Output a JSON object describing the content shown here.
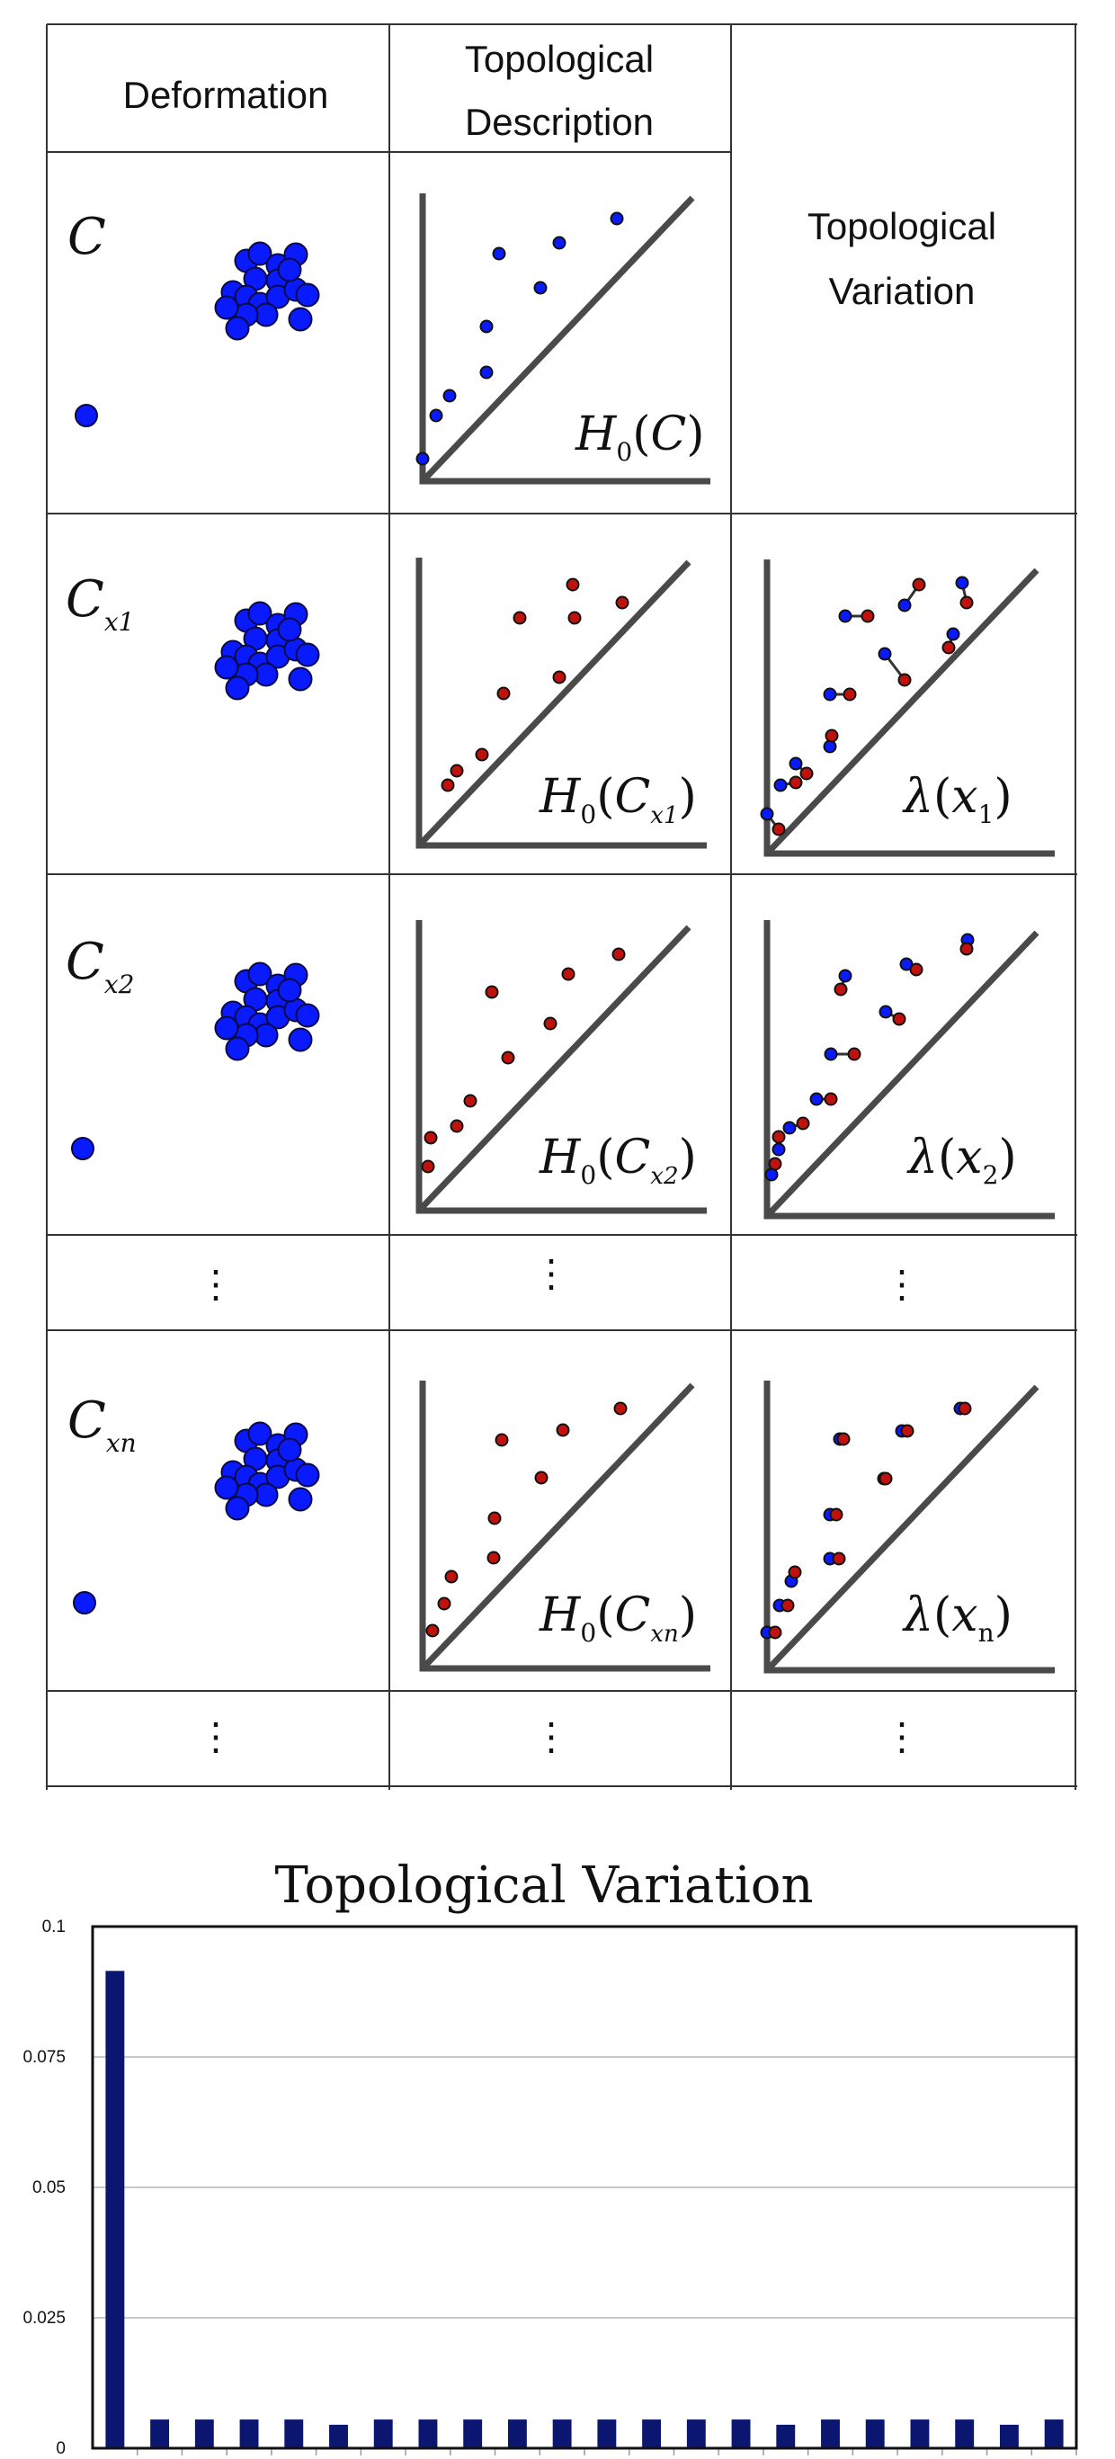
{
  "table": {
    "headers": {
      "deformation": "Deformation",
      "description_line1": "Topological",
      "description_line2": "Description",
      "variation_line1": "Topological",
      "variation_line2": "Variation"
    },
    "rows": [
      {
        "cloud_label": "C",
        "cloud_sub": "",
        "diagram_label": "H",
        "diagram_sub": "0",
        "diagram_arg": "C",
        "diagram_arg_sub": "",
        "variation_label": "",
        "variation_arg": "",
        "variation_sub": ""
      },
      {
        "cloud_label": "C",
        "cloud_sub": "x1",
        "diagram_label": "H",
        "diagram_sub": "0",
        "diagram_arg": "C",
        "diagram_arg_sub": "x1",
        "variation_label": "λ",
        "variation_arg": "x",
        "variation_sub": "1"
      },
      {
        "cloud_label": "C",
        "cloud_sub": "x2",
        "diagram_label": "H",
        "diagram_sub": "0",
        "diagram_arg": "C",
        "diagram_arg_sub": "x2",
        "variation_label": "λ",
        "variation_arg": "x",
        "variation_sub": "2"
      },
      {
        "cloud_label": "C",
        "cloud_sub": "xn",
        "diagram_label": "H",
        "diagram_sub": "0",
        "diagram_arg": "C",
        "diagram_arg_sub": "xn",
        "variation_label": "λ",
        "variation_arg": "x",
        "variation_sub": "n"
      }
    ],
    "ellipsis": "⋮"
  },
  "colors": {
    "cloud_point": "#0a1aff",
    "diagram_point_original": "#0a1aff",
    "diagram_point_deformed": "#c0120c",
    "axis": "#4a4a4a",
    "bar": "#0a1670",
    "grid": "#c8c8c8"
  },
  "chart_data": {
    "type": "bar",
    "title": "Topological Variation",
    "xlabel": "",
    "ylabel": "",
    "ylim": [
      0,
      0.1
    ],
    "yticks": [
      "0",
      "0.025",
      "0.05",
      "0.075",
      "0.1"
    ],
    "grid": true,
    "values": [
      0.0915,
      0.0055,
      0.0055,
      0.0055,
      0.0055,
      0.0045,
      0.0055,
      0.0055,
      0.0055,
      0.0055,
      0.0055,
      0.0055,
      0.0055,
      0.0055,
      0.0055,
      0.0045,
      0.0055,
      0.0055,
      0.0055,
      0.0055,
      0.0045,
      0.0055
    ]
  }
}
